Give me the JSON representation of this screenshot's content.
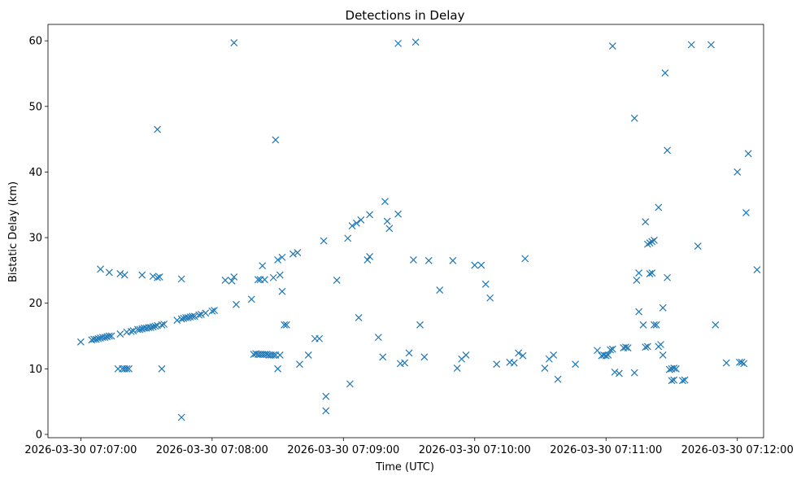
{
  "chart_data": {
    "type": "scatter",
    "title": "Detections in Delay",
    "xlabel": "Time (UTC)",
    "ylabel": "Bistatic Delay (km)",
    "x_unit": "seconds after 2026-03-30 07:07:00",
    "xlim": [
      -15,
      312
    ],
    "ylim": [
      -0.5,
      62.5
    ],
    "xticks": [
      0,
      60,
      120,
      180,
      240,
      300
    ],
    "xtick_labels": [
      "2026-03-30 07:07:00",
      "2026-03-30 07:08:00",
      "2026-03-30 07:09:00",
      "2026-03-30 07:10:00",
      "2026-03-30 07:11:00",
      "2026-03-30 07:12:00"
    ],
    "yticks": [
      0,
      10,
      20,
      30,
      40,
      50,
      60
    ],
    "ytick_labels": [
      "0",
      "10",
      "20",
      "30",
      "40",
      "50",
      "60"
    ],
    "marker": "x",
    "color": "#1f77b4",
    "grid": false,
    "series": [
      {
        "name": "detections",
        "points": [
          [
            0,
            14.1
          ],
          [
            5,
            14.4
          ],
          [
            6,
            14.5
          ],
          [
            7,
            14.5
          ],
          [
            8,
            14.6
          ],
          [
            9,
            14.7
          ],
          [
            10,
            14.8
          ],
          [
            11,
            14.8
          ],
          [
            12,
            14.9
          ],
          [
            13,
            15.0
          ],
          [
            14,
            15.0
          ],
          [
            18,
            15.3
          ],
          [
            21,
            15.6
          ],
          [
            23,
            15.7
          ],
          [
            24,
            15.8
          ],
          [
            26,
            16.0
          ],
          [
            27,
            16.0
          ],
          [
            28,
            16.1
          ],
          [
            29,
            16.2
          ],
          [
            30,
            16.2
          ],
          [
            31,
            16.3
          ],
          [
            32,
            16.3
          ],
          [
            33,
            16.4
          ],
          [
            34,
            16.5
          ],
          [
            35,
            16.6
          ],
          [
            37,
            16.7
          ],
          [
            38,
            16.8
          ],
          [
            44,
            17.4
          ],
          [
            46,
            17.6
          ],
          [
            47,
            17.7
          ],
          [
            48,
            17.8
          ],
          [
            49,
            17.8
          ],
          [
            50,
            17.9
          ],
          [
            51,
            18.0
          ],
          [
            52,
            18.0
          ],
          [
            54,
            18.2
          ],
          [
            55,
            18.3
          ],
          [
            57,
            18.5
          ],
          [
            60,
            18.8
          ],
          [
            61,
            18.9
          ],
          [
            9,
            25.2
          ],
          [
            13,
            24.7
          ],
          [
            18,
            24.5
          ],
          [
            20,
            24.3
          ],
          [
            28,
            24.3
          ],
          [
            33,
            24.1
          ],
          [
            35,
            23.9
          ],
          [
            36,
            24.0
          ],
          [
            46,
            23.7
          ],
          [
            17,
            10.0
          ],
          [
            19,
            10.0
          ],
          [
            20,
            10.0
          ],
          [
            21,
            10.0
          ],
          [
            22,
            10.0
          ],
          [
            37,
            10.0
          ],
          [
            35,
            46.5
          ],
          [
            46,
            2.6
          ],
          [
            66,
            23.5
          ],
          [
            69,
            23.4
          ],
          [
            70,
            24.0
          ],
          [
            71,
            19.8
          ],
          [
            70,
            59.7
          ],
          [
            78,
            20.6
          ],
          [
            79,
            12.2
          ],
          [
            80,
            12.3
          ],
          [
            81,
            12.2
          ],
          [
            82,
            12.2
          ],
          [
            83,
            12.2
          ],
          [
            84,
            12.2
          ],
          [
            85,
            12.2
          ],
          [
            86,
            12.1
          ],
          [
            87,
            12.1
          ],
          [
            88,
            12.1
          ],
          [
            89,
            12.1
          ],
          [
            91,
            12.1
          ],
          [
            81,
            23.6
          ],
          [
            82,
            23.6
          ],
          [
            83,
            25.7
          ],
          [
            84,
            23.6
          ],
          [
            88,
            23.9
          ],
          [
            90,
            26.6
          ],
          [
            91,
            24.3
          ],
          [
            92,
            27.0
          ],
          [
            92,
            21.8
          ],
          [
            93,
            16.7
          ],
          [
            94,
            16.7
          ],
          [
            97,
            27.5
          ],
          [
            99,
            27.7
          ],
          [
            90,
            10.0
          ],
          [
            89,
            44.9
          ],
          [
            100,
            10.7
          ],
          [
            104,
            12.1
          ],
          [
            107,
            14.6
          ],
          [
            109,
            14.6
          ],
          [
            111,
            29.5
          ],
          [
            112,
            5.8
          ],
          [
            112,
            3.6
          ],
          [
            117,
            23.5
          ],
          [
            122,
            29.9
          ],
          [
            123,
            7.7
          ],
          [
            124,
            31.8
          ],
          [
            126,
            32.2
          ],
          [
            127,
            17.8
          ],
          [
            128,
            32.7
          ],
          [
            131,
            26.6
          ],
          [
            132,
            27.1
          ],
          [
            132,
            33.5
          ],
          [
            136,
            14.8
          ],
          [
            138,
            11.8
          ],
          [
            139,
            35.5
          ],
          [
            140,
            32.5
          ],
          [
            141,
            31.4
          ],
          [
            145,
            33.6
          ],
          [
            146,
            10.8
          ],
          [
            148,
            10.9
          ],
          [
            150,
            12.4
          ],
          [
            152,
            26.6
          ],
          [
            155,
            16.7
          ],
          [
            157,
            11.8
          ],
          [
            159,
            26.5
          ],
          [
            145,
            59.6
          ],
          [
            153,
            59.8
          ],
          [
            164,
            22.0
          ],
          [
            170,
            26.5
          ],
          [
            172,
            10.1
          ],
          [
            174,
            11.5
          ],
          [
            176,
            12.1
          ],
          [
            180,
            25.8
          ],
          [
            183,
            25.8
          ],
          [
            185,
            22.9
          ],
          [
            187,
            20.8
          ],
          [
            190,
            10.7
          ],
          [
            196,
            11.0
          ],
          [
            198,
            10.9
          ],
          [
            200,
            12.4
          ],
          [
            202,
            12.0
          ],
          [
            203,
            26.8
          ],
          [
            212,
            10.1
          ],
          [
            214,
            11.5
          ],
          [
            216,
            12.1
          ],
          [
            218,
            8.4
          ],
          [
            226,
            10.7
          ],
          [
            236,
            12.8
          ],
          [
            242,
            12.9
          ],
          [
            243,
            13.0
          ],
          [
            244,
            9.5
          ],
          [
            246,
            9.3
          ],
          [
            248,
            13.2
          ],
          [
            249,
            13.3
          ],
          [
            250,
            13.2
          ],
          [
            253,
            9.4
          ],
          [
            254,
            23.5
          ],
          [
            255,
            24.6
          ],
          [
            257,
            16.7
          ],
          [
            258,
            13.3
          ],
          [
            259,
            13.4
          ],
          [
            260,
            24.5
          ],
          [
            261,
            24.6
          ],
          [
            262,
            16.7
          ],
          [
            263,
            16.7
          ],
          [
            264,
            13.4
          ],
          [
            265,
            13.7
          ],
          [
            266,
            19.3
          ],
          [
            266,
            12.1
          ],
          [
            268,
            23.9
          ],
          [
            269,
            9.9
          ],
          [
            270,
            10.0
          ],
          [
            271,
            10.1
          ],
          [
            272,
            10.0
          ],
          [
            243,
            59.2
          ],
          [
            268,
            43.3
          ],
          [
            238,
            12.0
          ],
          [
            239,
            12.1
          ],
          [
            240,
            12.0
          ],
          [
            241,
            12.1
          ],
          [
            270,
            8.2
          ],
          [
            271,
            8.3
          ],
          [
            253,
            48.2
          ],
          [
            255,
            18.7
          ],
          [
            258,
            32.4
          ],
          [
            259,
            29.0
          ],
          [
            260,
            29.2
          ],
          [
            261,
            29.4
          ],
          [
            262,
            29.6
          ],
          [
            264,
            34.6
          ],
          [
            267,
            55.1
          ],
          [
            275,
            8.2
          ],
          [
            276,
            8.3
          ],
          [
            279,
            59.4
          ],
          [
            282,
            28.7
          ],
          [
            288,
            59.4
          ],
          [
            290,
            16.7
          ],
          [
            295,
            10.9
          ],
          [
            300,
            40.0
          ],
          [
            301,
            11.0
          ],
          [
            302,
            11.0
          ],
          [
            303,
            10.8
          ],
          [
            304,
            33.8
          ],
          [
            305,
            42.8
          ],
          [
            309,
            25.1
          ]
        ]
      }
    ]
  }
}
